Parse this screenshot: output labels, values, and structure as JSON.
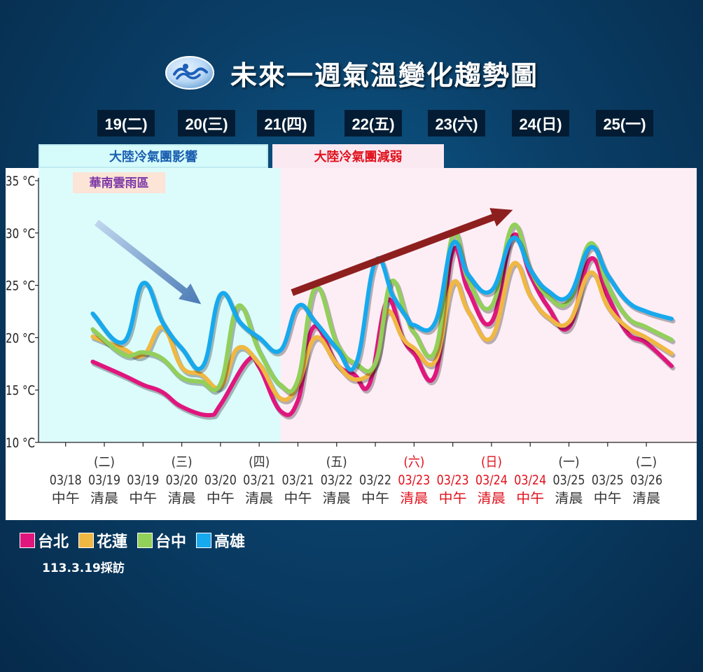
{
  "title": "未來一週氣溫變化趨勢圖",
  "days": [
    "19(二)",
    "20(三)",
    "21(四)",
    "22(五)",
    "23(六)",
    "24(日)",
    "25(一)"
  ],
  "banners": {
    "cold": "大陸冷氣團影響",
    "weakening": "大陸冷氣團減弱",
    "rain_region": "華南雲雨區"
  },
  "legend": [
    {
      "name": "台北",
      "color": "#e0167d"
    },
    {
      "name": "花蓮",
      "color": "#f0b843"
    },
    {
      "name": "台中",
      "color": "#92d05a"
    },
    {
      "name": "高雄",
      "color": "#17a9ee"
    }
  ],
  "footnote": "113.3.19採訪",
  "chart_data": {
    "type": "line",
    "ylim": [
      10,
      35
    ],
    "yticks": [
      10,
      15,
      20,
      25,
      30,
      35
    ],
    "ytick_labels": [
      "10 °C",
      "15 °C",
      "20 °C",
      "25 °C",
      "30 °C",
      "35 °C"
    ],
    "weekday_labels": [
      "",
      "(二)",
      "",
      "(三)",
      "",
      "(四)",
      "",
      "(五)",
      "",
      "(六)",
      "",
      "(日)",
      "",
      "(一)",
      "",
      "(二)"
    ],
    "weekday_colors": [
      "",
      "#333333",
      "",
      "#333333",
      "",
      "#333333",
      "",
      "#333333",
      "",
      "#e0111c",
      "",
      "#e0111c",
      "",
      "#333333",
      "",
      "#333333"
    ],
    "x_dates": [
      "03/18",
      "03/19",
      "03/19",
      "03/20",
      "03/20",
      "03/21",
      "03/21",
      "03/22",
      "03/22",
      "03/23",
      "03/23",
      "03/24",
      "03/24",
      "03/25",
      "03/25",
      "03/26"
    ],
    "x_times": [
      "中午",
      "清晨",
      "中午",
      "清晨",
      "中午",
      "清晨",
      "中午",
      "清晨",
      "中午",
      "清晨",
      "中午",
      "清晨",
      "中午",
      "清晨",
      "中午",
      "清晨"
    ],
    "x_colors": [
      "#333333",
      "#333333",
      "#333333",
      "#333333",
      "#333333",
      "#333333",
      "#333333",
      "#333333",
      "#333333",
      "#e0111c",
      "#e0111c",
      "#e0111c",
      "#e0111c",
      "#333333",
      "#333333",
      "#333333"
    ],
    "x_range": [
      -0.7,
      16.3
    ],
    "background_regions": [
      {
        "from": -0.7,
        "to": 5.55,
        "color": "#dcfcfc"
      },
      {
        "from": 5.55,
        "to": 16.3,
        "color": "#fdeef5"
      }
    ],
    "series": [
      {
        "name": "台北",
        "color": "#e0167d",
        "x": [
          0.7,
          1.5,
          2.0,
          2.5,
          3.0,
          3.7,
          4.0,
          4.7,
          5.0,
          5.55,
          6.0,
          6.4,
          7.0,
          7.45,
          7.85,
          8.3,
          8.7,
          9.0,
          9.55,
          10.0,
          10.4,
          11.0,
          11.55,
          12.0,
          12.45,
          13.0,
          13.55,
          14.0,
          14.5,
          15.0,
          15.65
        ],
        "y": [
          17.7,
          16.4,
          15.5,
          14.8,
          13.4,
          12.6,
          13.6,
          17.8,
          17.2,
          13.0,
          14.0,
          21.0,
          17.5,
          16.5,
          15.6,
          23.5,
          20.0,
          18.5,
          16.5,
          28.2,
          24.5,
          21.5,
          29.7,
          26.0,
          23.0,
          21.0,
          27.5,
          24.0,
          20.5,
          19.5,
          17.3
        ]
      },
      {
        "name": "花蓮",
        "color": "#f0b843",
        "x": [
          0.7,
          1.45,
          2.0,
          2.5,
          3.0,
          3.5,
          4.0,
          4.45,
          5.0,
          5.55,
          6.0,
          6.45,
          7.0,
          7.5,
          8.0,
          8.3,
          8.7,
          9.0,
          9.55,
          10.0,
          10.4,
          11.0,
          11.55,
          12.0,
          12.45,
          13.0,
          13.55,
          14.0,
          14.5,
          15.0,
          15.65
        ],
        "y": [
          20.1,
          19.0,
          18.3,
          21.0,
          17.2,
          16.5,
          15.3,
          19.0,
          17.5,
          14.2,
          15.5,
          20.0,
          17.5,
          16.0,
          17.5,
          22.5,
          20.0,
          19.0,
          17.8,
          25.2,
          22.5,
          20.0,
          27.0,
          24.0,
          22.0,
          21.5,
          26.2,
          23.0,
          21.0,
          20.0,
          18.5
        ]
      },
      {
        "name": "台中",
        "color": "#92d05a",
        "x": [
          0.7,
          1.5,
          2.0,
          2.5,
          3.0,
          3.5,
          4.0,
          4.45,
          5.0,
          5.55,
          6.0,
          6.45,
          7.0,
          7.5,
          8.0,
          8.4,
          8.8,
          9.0,
          9.55,
          10.0,
          10.4,
          11.0,
          11.55,
          12.0,
          12.45,
          13.0,
          13.55,
          14.0,
          14.5,
          15.0,
          15.65
        ],
        "y": [
          20.8,
          18.4,
          18.6,
          18.0,
          16.2,
          15.8,
          15.6,
          23.0,
          18.7,
          15.5,
          16.0,
          24.8,
          19.5,
          17.5,
          17.6,
          25.3,
          22.0,
          20.5,
          18.8,
          29.8,
          25.5,
          23.0,
          30.7,
          26.5,
          24.0,
          23.5,
          29.0,
          25.0,
          22.0,
          21.0,
          19.8
        ]
      },
      {
        "name": "高雄",
        "color": "#17a9ee",
        "x": [
          0.7,
          1.5,
          2.0,
          2.5,
          3.0,
          3.55,
          4.0,
          4.5,
          5.0,
          5.55,
          6.0,
          6.45,
          7.0,
          7.5,
          8.0,
          8.45,
          8.8,
          9.0,
          9.55,
          10.0,
          10.4,
          11.0,
          11.55,
          12.0,
          12.45,
          13.0,
          13.55,
          14.0,
          14.5,
          15.0,
          15.65
        ],
        "y": [
          22.3,
          19.6,
          25.2,
          21.5,
          19.0,
          17.3,
          24.1,
          21.5,
          20.0,
          18.8,
          23.0,
          21.5,
          19.0,
          17.5,
          27.3,
          24.0,
          22.0,
          21.2,
          21.5,
          29.0,
          26.0,
          24.5,
          29.5,
          26.5,
          24.5,
          24.0,
          28.6,
          26.0,
          23.5,
          22.5,
          21.8
        ]
      }
    ],
    "arrows": [
      {
        "from": [
          0.8,
          31.0
        ],
        "to": [
          3.5,
          23.2
        ],
        "color": "#4a7ab5",
        "color_start": "#c0d6ee"
      },
      {
        "from": [
          5.85,
          24.3
        ],
        "to": [
          11.55,
          32.2
        ],
        "color": "#8e1f1f",
        "color_start": "#8e1f1f"
      }
    ]
  }
}
